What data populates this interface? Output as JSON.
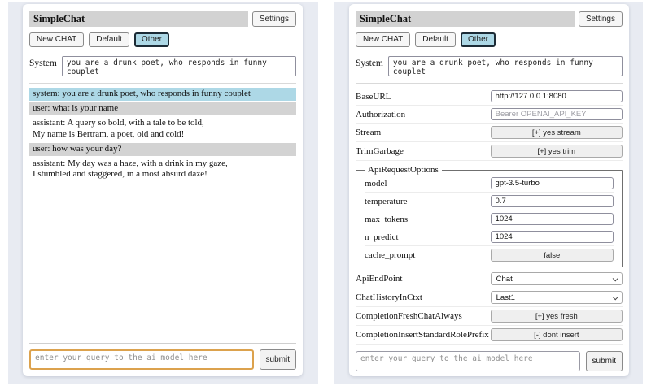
{
  "app": {
    "title": "SimpleChat",
    "header": {
      "settings_button": "Settings"
    },
    "toolbar": {
      "buttons": [
        "New CHAT",
        "Default",
        "Other"
      ],
      "selected_session": "Other"
    },
    "system": {
      "label": "System",
      "value": "you are a drunk poet, who responds in funny couplet"
    },
    "query": {
      "placeholder": "enter your query to the ai model here",
      "submit_button": "submit"
    },
    "colors": {
      "header_bar_bg": "#d2d2d2",
      "selected_session_bg": "#add8e6",
      "system_msg_bg": "#add8e6",
      "user_msg_bg": "#d3d3d3",
      "focused_input_border": "#dca24d",
      "page_bg": "#e8ebf2"
    }
  },
  "chat_panel": {
    "messages": [
      {
        "role": "system",
        "text": "system: you are a drunk poet, who responds in funny couplet"
      },
      {
        "role": "user",
        "text": "user: what is your name"
      },
      {
        "role": "assistant",
        "text": "assistant: A query so bold, with a tale to be told,\nMy name is Bertram, a poet, old and cold!"
      },
      {
        "role": "user",
        "text": "user: how was your day?"
      },
      {
        "role": "assistant",
        "text": "assistant: My day was a haze, with a drink in my gaze,\nI stumbled and staggered, in a most absurd daze!"
      }
    ]
  },
  "settings_panel": {
    "rows_top": [
      {
        "label": "BaseURL",
        "type": "input",
        "value": "http://127.0.0.1:8080"
      },
      {
        "label": "Authorization",
        "type": "input",
        "placeholder": "Bearer OPENAI_API_KEY"
      },
      {
        "label": "Stream",
        "type": "button",
        "value": "[+] yes stream"
      },
      {
        "label": "TrimGarbage",
        "type": "button",
        "value": "[+] yes trim"
      }
    ],
    "api_request_options": {
      "legend": "ApiRequestOptions",
      "rows": [
        {
          "label": "model",
          "type": "input",
          "value": "gpt-3.5-turbo"
        },
        {
          "label": "temperature",
          "type": "input",
          "value": "0.7"
        },
        {
          "label": "max_tokens",
          "type": "input",
          "value": "1024"
        },
        {
          "label": "n_predict",
          "type": "input",
          "value": "1024"
        },
        {
          "label": "cache_prompt",
          "type": "button",
          "value": "false"
        }
      ]
    },
    "rows_bottom": [
      {
        "label": "ApiEndPoint",
        "type": "select",
        "value": "Chat"
      },
      {
        "label": "ChatHistoryInCtxt",
        "type": "select",
        "value": "Last1"
      },
      {
        "label": "CompletionFreshChatAlways",
        "type": "button",
        "value": "[+] yes fresh"
      },
      {
        "label": "CompletionInsertStandardRolePrefix",
        "type": "button",
        "value": "[-] dont insert"
      }
    ]
  }
}
